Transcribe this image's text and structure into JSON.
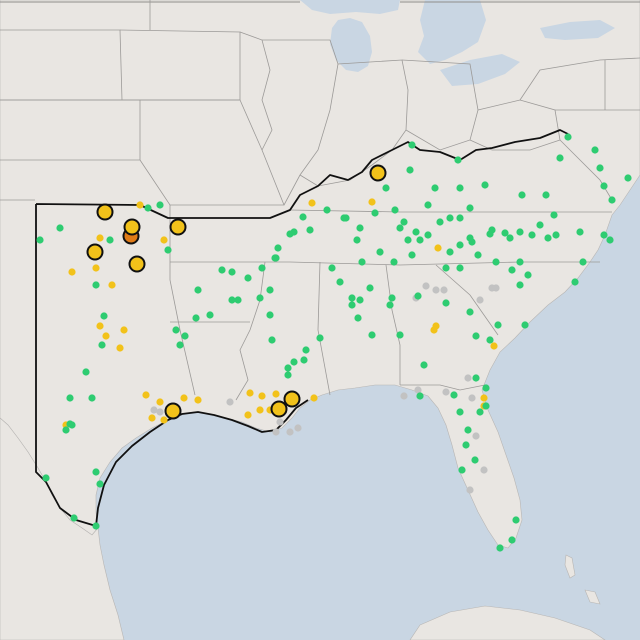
{
  "map": {
    "title": "",
    "basemap": {
      "land_color": "#e9e6e2",
      "water_color": "#c9d6e3",
      "border_color": "#9c9a98"
    },
    "legend": null
  },
  "colors": {
    "green": "#2ecc71",
    "yellow": "#f2c21a",
    "orange": "#e07b17",
    "gray": "#c2c2c2",
    "outline": "#111111"
  },
  "markers": {
    "large": [
      {
        "color": "yellow"
      },
      {
        "color": "yellow"
      },
      {
        "color": "orange"
      },
      {
        "color": "yellow"
      },
      {
        "color": "yellow"
      },
      {
        "color": "yellow"
      },
      {
        "color": "yellow"
      },
      {
        "color": "yellow"
      },
      {
        "color": "yellow"
      },
      {
        "color": "yellow"
      }
    ],
    "small_counts": {
      "green": 140,
      "yellow": 32,
      "gray": 20
    }
  }
}
